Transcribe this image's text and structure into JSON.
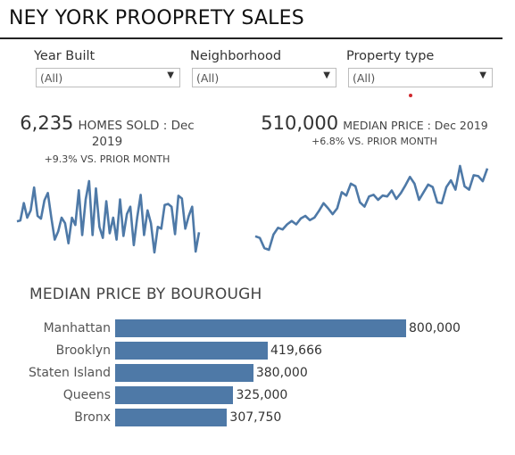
{
  "page": {
    "title": "NEY YORK PROOPRETY SALES"
  },
  "filters": [
    {
      "label": "Year Built",
      "value": "(All)"
    },
    {
      "label": "Neighborhood",
      "value": "(All)"
    },
    {
      "label": "Property type",
      "value": "(All)"
    }
  ],
  "icons": {
    "dropdown_caret": "chevron-down-icon"
  },
  "colors": {
    "bar": "#4e79a7",
    "line": "#4e79a7",
    "dot": "#d0282e"
  },
  "kpis": {
    "homes": {
      "value": "6,235",
      "unit": "HOMES SOLD : Dec",
      "unit2": "2019",
      "change": "+9.3% VS. PRIOR MONTH"
    },
    "price": {
      "value": "510,000",
      "unit": "MEDIAN PRICE : Dec 2019",
      "change": "+6.8% VS. PRIOR MONTH"
    }
  },
  "chart_data": [
    {
      "type": "line",
      "title": "",
      "values": [
        40,
        41,
        60,
        44,
        52,
        77,
        46,
        43,
        63,
        71,
        44,
        20,
        29,
        44,
        38,
        16,
        44,
        36,
        74,
        25,
        64,
        84,
        25,
        76,
        34,
        22,
        62,
        27,
        44,
        20,
        64,
        24,
        48,
        56,
        14,
        44,
        69,
        25,
        52,
        38,
        6,
        34,
        32,
        58,
        59,
        56,
        26,
        68,
        65,
        32,
        46,
        56,
        7,
        28
      ]
    },
    {
      "type": "line",
      "title": "",
      "values": [
        18,
        16,
        4,
        2,
        20,
        28,
        26,
        32,
        36,
        32,
        39,
        42,
        37,
        40,
        48,
        57,
        51,
        44,
        51,
        70,
        66,
        80,
        77,
        58,
        53,
        65,
        67,
        61,
        66,
        65,
        72,
        62,
        69,
        78,
        88,
        80,
        61,
        70,
        79,
        76,
        58,
        57,
        76,
        84,
        73,
        101,
        77,
        73,
        90,
        89,
        83,
        98
      ]
    },
    {
      "type": "bar",
      "title": "MEDIAN PRICE BY BOUROUGH",
      "categories": [
        "Manhattan",
        "Brooklyn",
        "Staten Island",
        "Queens",
        "Bronx"
      ],
      "values": [
        800000,
        419666,
        380000,
        325000,
        307750
      ],
      "value_labels": [
        "800,000",
        "419,666",
        "380,000",
        "325,000",
        "307,750"
      ]
    }
  ]
}
